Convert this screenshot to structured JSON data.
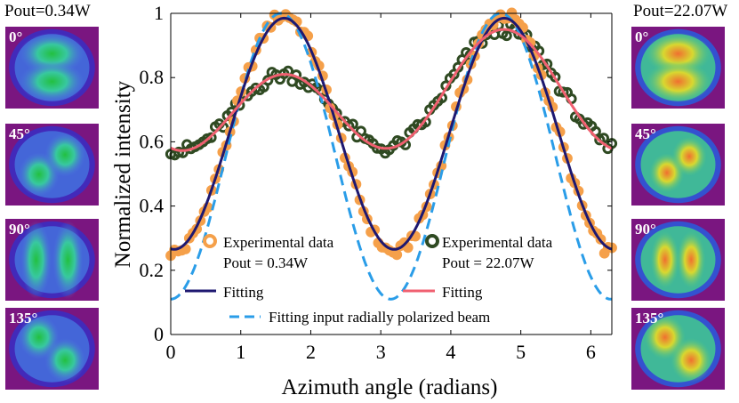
{
  "left_panel": {
    "title": "Pout=0.34W",
    "images": [
      {
        "angle_label": "0°",
        "pattern": "two-lobe-vertical-stack"
      },
      {
        "angle_label": "45°",
        "pattern": "two-lobe-diagonal"
      },
      {
        "angle_label": "90°",
        "pattern": "two-lobe-side-by-side"
      },
      {
        "angle_label": "135°",
        "pattern": "two-lobe-antidiagonal"
      }
    ]
  },
  "right_panel": {
    "title": "Pout=22.07W",
    "images": [
      {
        "angle_label": "0°",
        "pattern": "two-lobe-vertical-stack"
      },
      {
        "angle_label": "45°",
        "pattern": "ring-with-diagonal-lobes"
      },
      {
        "angle_label": "90°",
        "pattern": "ring-with-side-lobes"
      },
      {
        "angle_label": "135°",
        "pattern": "two-lobe-antidiagonal"
      }
    ]
  },
  "colors": {
    "exp_low": "#f5a04a",
    "exp_high": "#2f4a22",
    "fit_low": "#1e1870",
    "fit_high": "#f06070",
    "fit_radial": "#2a9de8"
  },
  "chart_data": {
    "type": "line",
    "xlabel": "Azimuth angle (radians)",
    "ylabel": "Normalized intensity",
    "xlim": [
      0,
      6.3
    ],
    "ylim": [
      0,
      1
    ],
    "xticks": [
      0,
      1,
      2,
      3,
      4,
      5,
      6
    ],
    "yticks": [
      0,
      0.2,
      0.4,
      0.6,
      0.8,
      1
    ],
    "xtick_labels": [
      "0",
      "1",
      "2",
      "3",
      "4",
      "5",
      "6"
    ],
    "ytick_labels": [
      "0",
      "0.2",
      "0.4",
      "0.6",
      "0.8",
      "1"
    ],
    "series": [
      {
        "name": "Experimental data Pout = 0.34W",
        "legend_line1": "Experimental data",
        "legend_line2": "Pout = 0.34W",
        "kind": "scatter",
        "model": {
          "offset": 0.625,
          "amp": 0.37,
          "phase": 0.05
        },
        "n_points": 120
      },
      {
        "name": "Experimental data Pout = 22.07W",
        "legend_line1": "Experimental data",
        "legend_line2": "Pout = 22.07W",
        "kind": "scatter",
        "model": {
          "offset": 0.73,
          "amp": 0.15,
          "phase": 0.05,
          "secondary_amp": 0.07
        },
        "n_points": 110
      },
      {
        "name": "Fitting",
        "kind": "line",
        "model": {
          "offset": 0.625,
          "amp": 0.36,
          "phase": 0.05
        }
      },
      {
        "name": "Fitting",
        "kind": "line",
        "model": {
          "offset": 0.73,
          "amp": 0.15,
          "phase": 0.05,
          "secondary_amp": 0.07
        }
      },
      {
        "name": "Fitting input radially polarized beam",
        "kind": "dashed",
        "model": {
          "offset": 0.555,
          "amp": 0.445,
          "phase": 0.0
        }
      }
    ]
  }
}
